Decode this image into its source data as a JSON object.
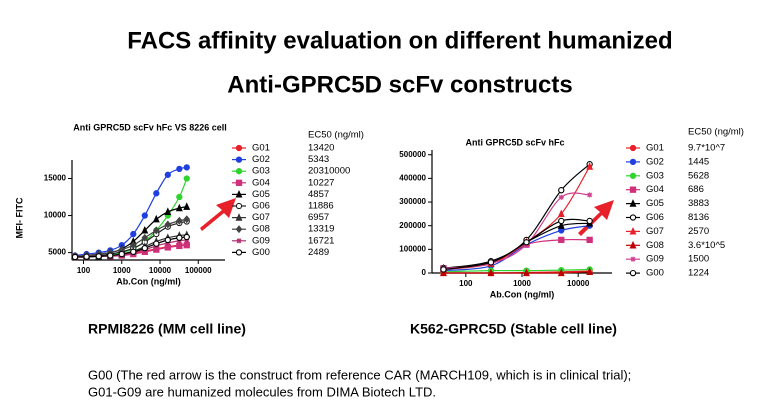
{
  "slide": {
    "title_line1": "FACS affinity evaluation on different humanized",
    "title_line2": "Anti-GPRC5D scFv constructs",
    "caption_left": "RPMI8226 (MM cell line)",
    "caption_right": "K562-GPRC5D   (Stable cell line)",
    "footnote_line1": "G00 (The red arrow is the construct from reference CAR (MARCH109, which is in clinical trial);",
    "footnote_line2": "G01-G09 are humanized molecules from DIMA Biotech LTD."
  },
  "chart_data": [
    {
      "type": "line",
      "title": "Anti GPRC5D scFv hFc VS 8226  cell",
      "xlabel": "Ab.Con (ng/ml)",
      "ylabel": "MFI- FITC",
      "legend_title": "EC50 (ng/ml)",
      "xscale": "log",
      "x": [
        60,
        120,
        250,
        500,
        1000,
        2000,
        4000,
        8000,
        16000,
        32000,
        50000
      ],
      "xlim": [
        50,
        500000
      ],
      "xticks": [
        100,
        1000,
        10000,
        100000
      ],
      "ylim": [
        4000,
        17500
      ],
      "yticks": [
        5000,
        10000,
        15000
      ],
      "series": [
        {
          "name": "G01",
          "ec50": "13420",
          "color": "#e8202a",
          "marker": "circle",
          "values": [
            4400,
            4450,
            4500,
            4600,
            4700,
            4900,
            5200,
            5500,
            5800,
            6000,
            6100
          ]
        },
        {
          "name": "G02",
          "ec50": "5343",
          "color": "#1f3fe0",
          "marker": "circle",
          "values": [
            4600,
            4800,
            5000,
            5300,
            6000,
            7500,
            10000,
            13000,
            15500,
            16300,
            16500
          ]
        },
        {
          "name": "G03",
          "ec50": "20310000",
          "color": "#2ed42e",
          "marker": "circle",
          "values": [
            4500,
            4500,
            4600,
            4700,
            5000,
            5500,
            6500,
            8000,
            10000,
            12500,
            15000
          ]
        },
        {
          "name": "G04",
          "ec50": "10227",
          "color": "#d0307a",
          "marker": "square",
          "values": [
            4400,
            4400,
            4500,
            4500,
            4600,
            4800,
            5100,
            5400,
            5700,
            5900,
            6000
          ]
        },
        {
          "name": "G05",
          "ec50": "4857",
          "color": "#000000",
          "marker": "triangle",
          "values": [
            4500,
            4600,
            4800,
            5000,
            5500,
            6500,
            8000,
            9500,
            10500,
            11000,
            11200
          ]
        },
        {
          "name": "G06",
          "ec50": "11886",
          "color": "#222222",
          "marker": "open-circle",
          "values": [
            4500,
            4500,
            4600,
            4800,
            5100,
            5600,
            6400,
            7500,
            8500,
            9000,
            9200
          ]
        },
        {
          "name": "G07",
          "ec50": "6957",
          "color": "#333333",
          "marker": "triangle",
          "values": [
            4400,
            4400,
            4500,
            4600,
            4800,
            5200,
            5800,
            6500,
            7000,
            7300,
            7400
          ]
        },
        {
          "name": "G08",
          "ec50": "13319",
          "color": "#444444",
          "marker": "diamond",
          "values": [
            4500,
            4600,
            4800,
            5000,
            5400,
            6000,
            7000,
            8000,
            8800,
            9300,
            9500
          ]
        },
        {
          "name": "G09",
          "ec50": "16721",
          "color": "#b03070",
          "marker": "star",
          "values": [
            4400,
            4500,
            4500,
            4600,
            4700,
            5000,
            5400,
            5900,
            6300,
            6600,
            6700
          ]
        },
        {
          "name": "G00",
          "ec50": "2489",
          "color": "#000000",
          "marker": "open-circle",
          "values": [
            4400,
            4450,
            4500,
            4600,
            4800,
            5100,
            5600,
            6200,
            6700,
            7000,
            7100
          ]
        }
      ]
    },
    {
      "type": "line",
      "title": "Anti GPRC5D scFv hFc",
      "xlabel": "Ab.Con (ng/ml)",
      "legend_title": "EC50 (ng/ml)",
      "xscale": "log",
      "x": [
        40,
        280,
        1200,
        5000,
        16000
      ],
      "xlim": [
        25,
        40000
      ],
      "xticks": [
        100,
        1000,
        10000
      ],
      "ylim": [
        0,
        520000
      ],
      "yticks": [
        0,
        100000,
        200000,
        300000,
        400000,
        500000
      ],
      "series": [
        {
          "name": "G01",
          "ec50": "9.7*10^7",
          "color": "#e8202a",
          "marker": "circle",
          "values": [
            0,
            0,
            2000,
            5000,
            8000
          ]
        },
        {
          "name": "G02",
          "ec50": "1445",
          "color": "#1f3fe0",
          "marker": "circle",
          "values": [
            10000,
            30000,
            120000,
            180000,
            200000
          ]
        },
        {
          "name": "G03",
          "ec50": "5628",
          "color": "#2ed42e",
          "marker": "circle",
          "values": [
            5000,
            10000,
            10000,
            12000,
            15000
          ]
        },
        {
          "name": "G04",
          "ec50": "686",
          "color": "#d0307a",
          "marker": "square",
          "values": [
            20000,
            40000,
            120000,
            140000,
            140000
          ]
        },
        {
          "name": "G05",
          "ec50": "3883",
          "color": "#000000",
          "marker": "triangle",
          "values": [
            20000,
            40000,
            130000,
            200000,
            210000
          ]
        },
        {
          "name": "G06",
          "ec50": "8136",
          "color": "#000000",
          "marker": "open-circle",
          "values": [
            20000,
            50000,
            140000,
            350000,
            460000
          ]
        },
        {
          "name": "G07",
          "ec50": "2570",
          "color": "#e8202a",
          "marker": "triangle",
          "values": [
            15000,
            40000,
            130000,
            250000,
            450000
          ]
        },
        {
          "name": "G08",
          "ec50": "3.6*10^5",
          "color": "#c00000",
          "marker": "triangle",
          "values": [
            0,
            0,
            0,
            0,
            5000
          ]
        },
        {
          "name": "G09",
          "ec50": "1500",
          "color": "#d04090",
          "marker": "star",
          "values": [
            20000,
            40000,
            120000,
            320000,
            330000
          ]
        },
        {
          "name": "G00",
          "ec50": "1224",
          "color": "#000000",
          "marker": "open-circle",
          "values": [
            15000,
            45000,
            130000,
            220000,
            220000
          ]
        }
      ]
    }
  ]
}
